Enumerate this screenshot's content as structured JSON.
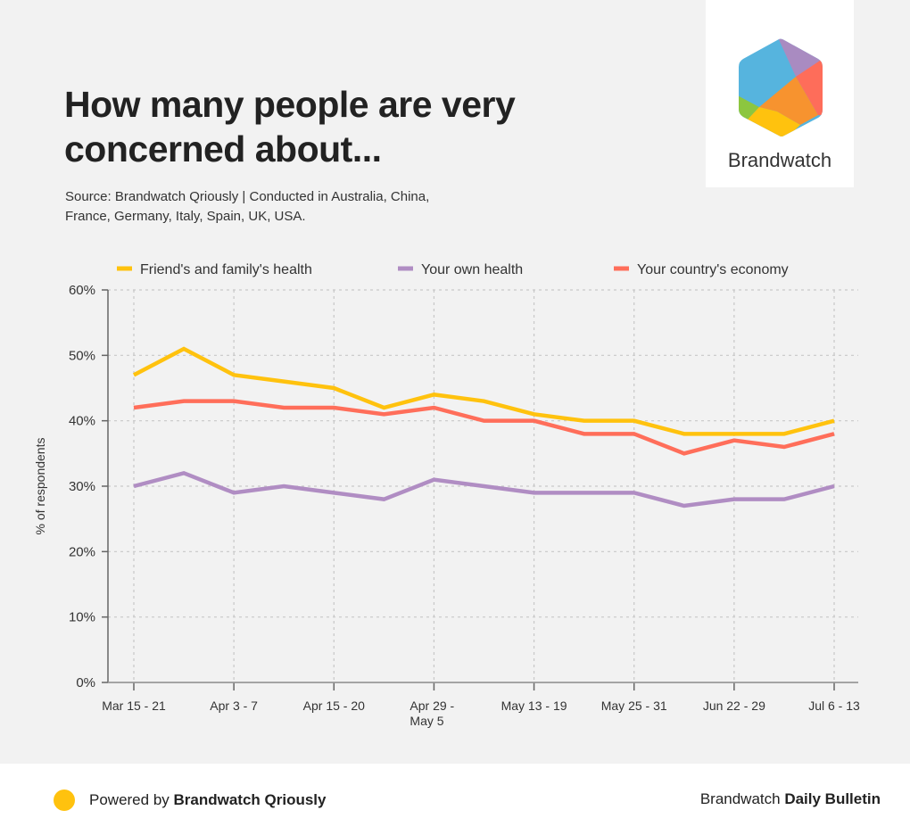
{
  "title": "How many people are very concerned about...",
  "source": "Source: Brandwatch Qriously | Conducted in Australia, China, France, Germany, Italy, Spain, UK, USA.",
  "logo": {
    "name": "Brandwatch"
  },
  "footer": {
    "powered_prefix": "Powered by ",
    "powered_brand": "Brandwatch Qriously",
    "bulletin_prefix": "Brandwatch ",
    "bulletin_name": "Daily Bulletin",
    "dot_color": "#ffc20e"
  },
  "chart_data": {
    "type": "line",
    "title": "How many people are very concerned about...",
    "xlabel": "",
    "ylabel": "% of respondents",
    "ylim": [
      0,
      60
    ],
    "yticks": [
      0,
      10,
      20,
      30,
      40,
      50,
      60
    ],
    "ytick_labels": [
      "0%",
      "10%",
      "20%",
      "30%",
      "40%",
      "50%",
      "60%"
    ],
    "grid": true,
    "legend_position": "top",
    "x_count": 15,
    "x_tick_indices": [
      0,
      2,
      4,
      6,
      8,
      10,
      12,
      14
    ],
    "x_tick_labels": [
      "Mar 15 - 21",
      "Apr 3 - 7",
      "Apr 15 - 20",
      "Apr 29 - May 5",
      "May 13 - 19",
      "May 25 - 31",
      "Jun 22 - 29",
      "Jul 6 - 13"
    ],
    "series": [
      {
        "name": "Friend's and family's health",
        "color": "#ffc20e",
        "values": [
          47,
          51,
          47,
          46,
          45,
          42,
          44,
          43,
          41,
          40,
          40,
          38,
          38,
          38,
          40
        ]
      },
      {
        "name": "Your own health",
        "color": "#b08dc3",
        "values": [
          30,
          32,
          29,
          30,
          29,
          28,
          31,
          30,
          29,
          29,
          29,
          27,
          28,
          28,
          30
        ]
      },
      {
        "name": "Your country's economy",
        "color": "#ff6e5a",
        "values": [
          42,
          43,
          43,
          42,
          42,
          41,
          42,
          40,
          40,
          38,
          38,
          35,
          37,
          36,
          38
        ]
      }
    ]
  }
}
